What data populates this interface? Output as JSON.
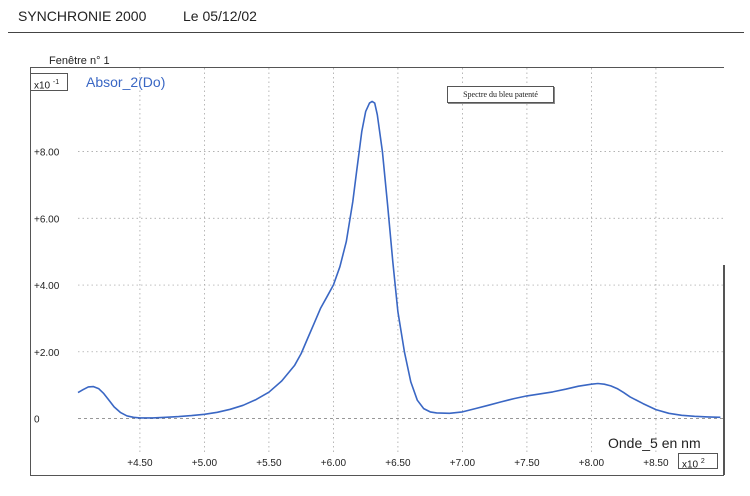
{
  "header": {
    "app_title": "SYNCHRONIE 2000",
    "date_text": "Le 05/12/02"
  },
  "window": {
    "title": "Fenêtre n° 1"
  },
  "chart_data": {
    "type": "line",
    "series": [
      {
        "name": "Absor_2(Do)",
        "color": "#3a67c4",
        "x": [
          402,
          406,
          410,
          414,
          418,
          422,
          426,
          430,
          435,
          440,
          445,
          450,
          460,
          470,
          480,
          490,
          500,
          510,
          520,
          530,
          540,
          550,
          560,
          570,
          575,
          580,
          585,
          590,
          595,
          600,
          605,
          610,
          615,
          618,
          620,
          622,
          625,
          628,
          630,
          632,
          634,
          638,
          642,
          646,
          650,
          655,
          660,
          665,
          670,
          675,
          680,
          690,
          700,
          710,
          720,
          730,
          740,
          750,
          760,
          770,
          780,
          790,
          800,
          805,
          810,
          815,
          820,
          825,
          830,
          840,
          850,
          860,
          870,
          880,
          890,
          900
        ],
        "y": [
          0.078,
          0.087,
          0.095,
          0.096,
          0.09,
          0.075,
          0.055,
          0.035,
          0.018,
          0.008,
          0.004,
          0.002,
          0.002,
          0.004,
          0.006,
          0.009,
          0.013,
          0.019,
          0.028,
          0.04,
          0.057,
          0.079,
          0.113,
          0.16,
          0.195,
          0.24,
          0.285,
          0.33,
          0.365,
          0.4,
          0.455,
          0.53,
          0.65,
          0.74,
          0.8,
          0.86,
          0.92,
          0.945,
          0.95,
          0.945,
          0.91,
          0.8,
          0.64,
          0.47,
          0.32,
          0.2,
          0.11,
          0.055,
          0.03,
          0.02,
          0.017,
          0.016,
          0.02,
          0.03,
          0.04,
          0.05,
          0.06,
          0.068,
          0.074,
          0.08,
          0.088,
          0.097,
          0.103,
          0.105,
          0.103,
          0.098,
          0.09,
          0.078,
          0.065,
          0.045,
          0.027,
          0.016,
          0.01,
          0.007,
          0.005,
          0.004
        ]
      }
    ],
    "xlabel": "Onde_5 en nm",
    "x_exponent": "x10",
    "x_exponent_power": "2",
    "y_exponent": "x10",
    "y_exponent_power": "-1",
    "xticks": [
      "+4.50",
      "+5.00",
      "+5.50",
      "+6.00",
      "+6.50",
      "+7.00",
      "+7.50",
      "+8.00",
      "+8.50"
    ],
    "xtick_values": [
      450,
      500,
      550,
      600,
      650,
      700,
      750,
      800,
      850
    ],
    "yticks": [
      "0",
      "+2.00",
      "+4.00",
      "+6.00",
      "+8.00"
    ],
    "ytick_values": [
      0,
      0.2,
      0.4,
      0.6,
      0.8
    ],
    "xlim": [
      402,
      902
    ],
    "ylim": [
      -0.1,
      1.05
    ],
    "grid": true,
    "annotation": "Spectre du bleu patenté"
  }
}
